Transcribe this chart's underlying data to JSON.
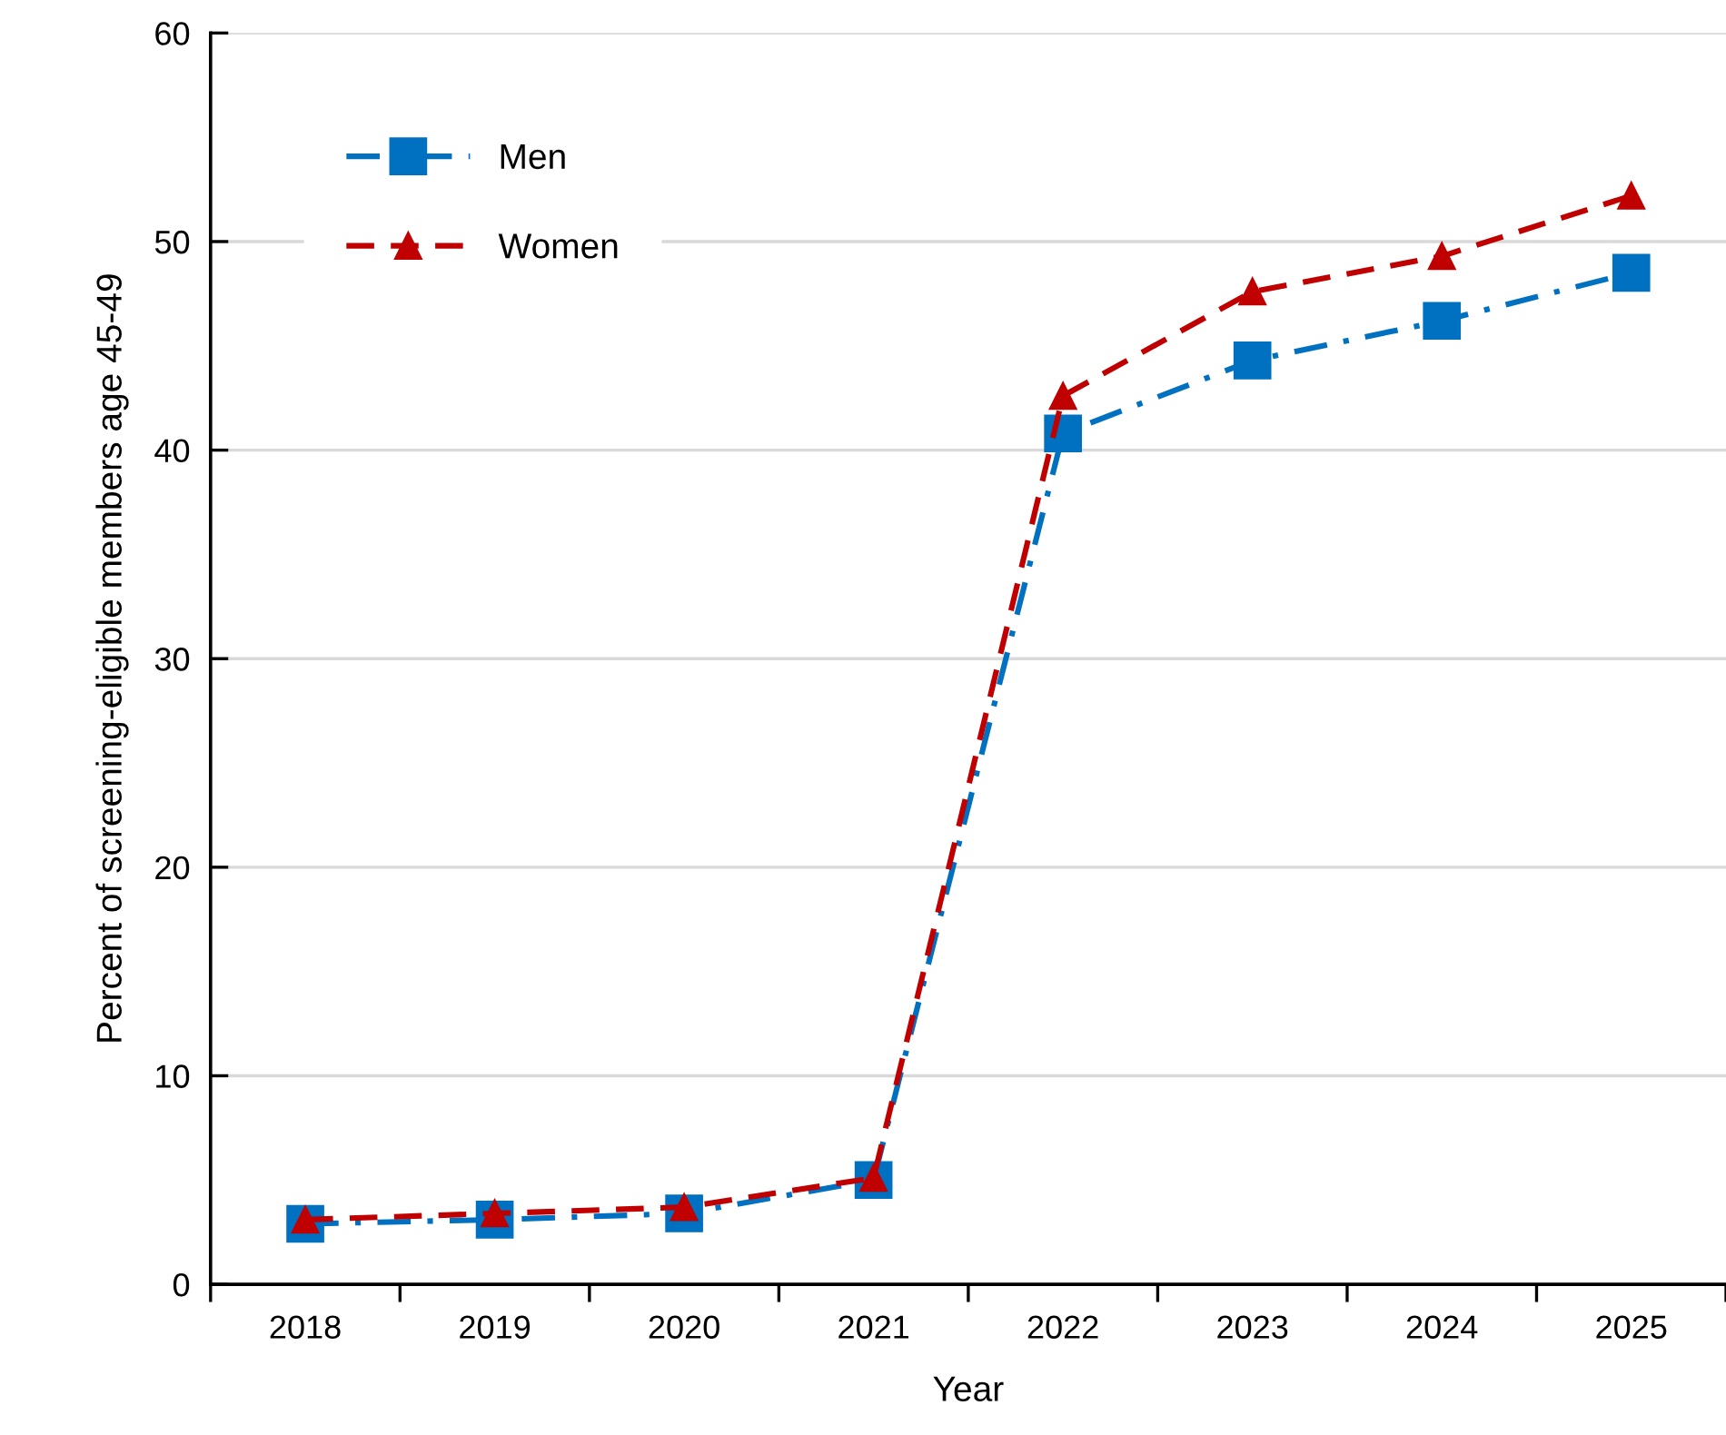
{
  "chart_data": {
    "type": "line",
    "xlabel": "Year",
    "ylabel": "Percent of screening-eligible members age 45-49",
    "categories": [
      "2018",
      "2019",
      "2020",
      "2021",
      "2022",
      "2023",
      "2024",
      "2025"
    ],
    "series": [
      {
        "name": "Men",
        "color": "#0070c0",
        "marker": "square",
        "line_style": "dashdot",
        "values": [
          2.9,
          3.1,
          3.4,
          5.0,
          40.8,
          44.3,
          46.2,
          48.5
        ]
      },
      {
        "name": "Women",
        "color": "#c00000",
        "marker": "triangle",
        "line_style": "dashed",
        "values": [
          3.1,
          3.4,
          3.7,
          5.1,
          42.6,
          47.6,
          49.3,
          52.2
        ]
      }
    ],
    "ylim": [
      0,
      60
    ],
    "yticks": [
      0,
      10,
      20,
      30,
      40,
      50,
      60
    ],
    "grid": "y",
    "legend": "top left"
  }
}
